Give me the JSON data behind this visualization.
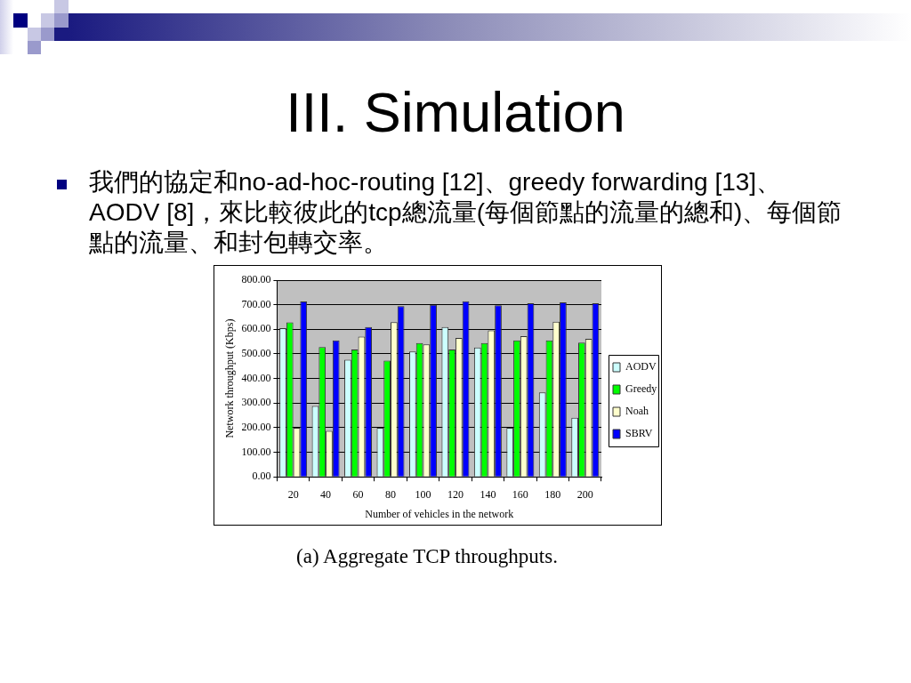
{
  "chart_data": {
    "type": "bar",
    "title": "III. Simulation",
    "subtitle": "我們的協定和no-ad-hoc-routing [12]、greedy forwarding [13]、AODV [8]，來比較彼此的tcp總流量(每個節點的流量的總和)、每個節點的流量、和封包轉交率。",
    "xlabel": "Number of vehicles in the network",
    "ylabel": "Network throughput (Kbps)",
    "annotations": [
      "(a) Aggregate TCP throughputs."
    ],
    "categories": [
      "20",
      "40",
      "60",
      "80",
      "100",
      "120",
      "140",
      "160",
      "180",
      "200"
    ],
    "series": [
      {
        "name": "AODV",
        "color": "#ccffff",
        "values": [
          605,
          288,
          476,
          200,
          510,
          609,
          526,
          200,
          343,
          240
        ]
      },
      {
        "name": "Greedy",
        "color": "#00ff00",
        "values": [
          628,
          528,
          518,
          473,
          544,
          518,
          544,
          555,
          555,
          546
        ]
      },
      {
        "name": "Noah",
        "color": "#ffffcc",
        "values": [
          200,
          187,
          570,
          629,
          539,
          565,
          596,
          572,
          631,
          561
        ]
      },
      {
        "name": "SBRV",
        "color": "#0000ff",
        "values": [
          713,
          555,
          609,
          694,
          700,
          714,
          698,
          706,
          710,
          706
        ]
      }
    ],
    "ylim": [
      0,
      800
    ],
    "yticks": [
      {
        "value": 0,
        "label": "0.00"
      },
      {
        "value": 100,
        "label": "100.00"
      },
      {
        "value": 200,
        "label": "200.00"
      },
      {
        "value": 300,
        "label": "300.00"
      },
      {
        "value": 400,
        "label": "400.00"
      },
      {
        "value": 500,
        "label": "500.00"
      },
      {
        "value": 600,
        "label": "600.00"
      },
      {
        "value": 700,
        "label": "700.00"
      },
      {
        "value": 800,
        "label": "800.00"
      }
    ],
    "grid": "y",
    "legend": "right"
  }
}
